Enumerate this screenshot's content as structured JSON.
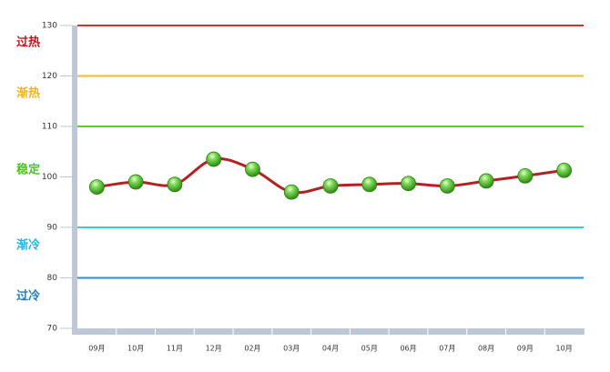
{
  "chart_data": {
    "type": "line",
    "categories": [
      "09月",
      "10月",
      "11月",
      "12月",
      "02月",
      "03月",
      "04月",
      "05月",
      "06月",
      "07月",
      "08月",
      "09月",
      "10月"
    ],
    "series": [
      {
        "color": "#b22222",
        "marker_color": "#3cb019",
        "values": [
          98,
          99,
          98.5,
          103.5,
          101.5,
          97,
          98.2,
          98.5,
          98.7,
          98.2,
          99.2,
          100.2,
          101.3
        ]
      }
    ],
    "ylim": [
      70,
      130
    ],
    "yticks": [
      70,
      80,
      90,
      100,
      110,
      120,
      130
    ],
    "reference_lines": [
      {
        "value": 130,
        "color": "#d9322b"
      },
      {
        "value": 120,
        "color": "#f5b82e"
      },
      {
        "value": 110,
        "color": "#5ccc2e"
      },
      {
        "value": 90,
        "color": "#3cc6d6"
      },
      {
        "value": 80,
        "color": "#2a8fd0"
      }
    ],
    "zones": [
      {
        "label": "过热",
        "color": "#c4161c"
      },
      {
        "label": "渐热",
        "color": "#f2b322"
      },
      {
        "label": "稳定",
        "color": "#4cc12a"
      },
      {
        "label": "渐冷",
        "color": "#22b5e0"
      },
      {
        "label": "过冷",
        "color": "#1f7cc0"
      }
    ]
  }
}
